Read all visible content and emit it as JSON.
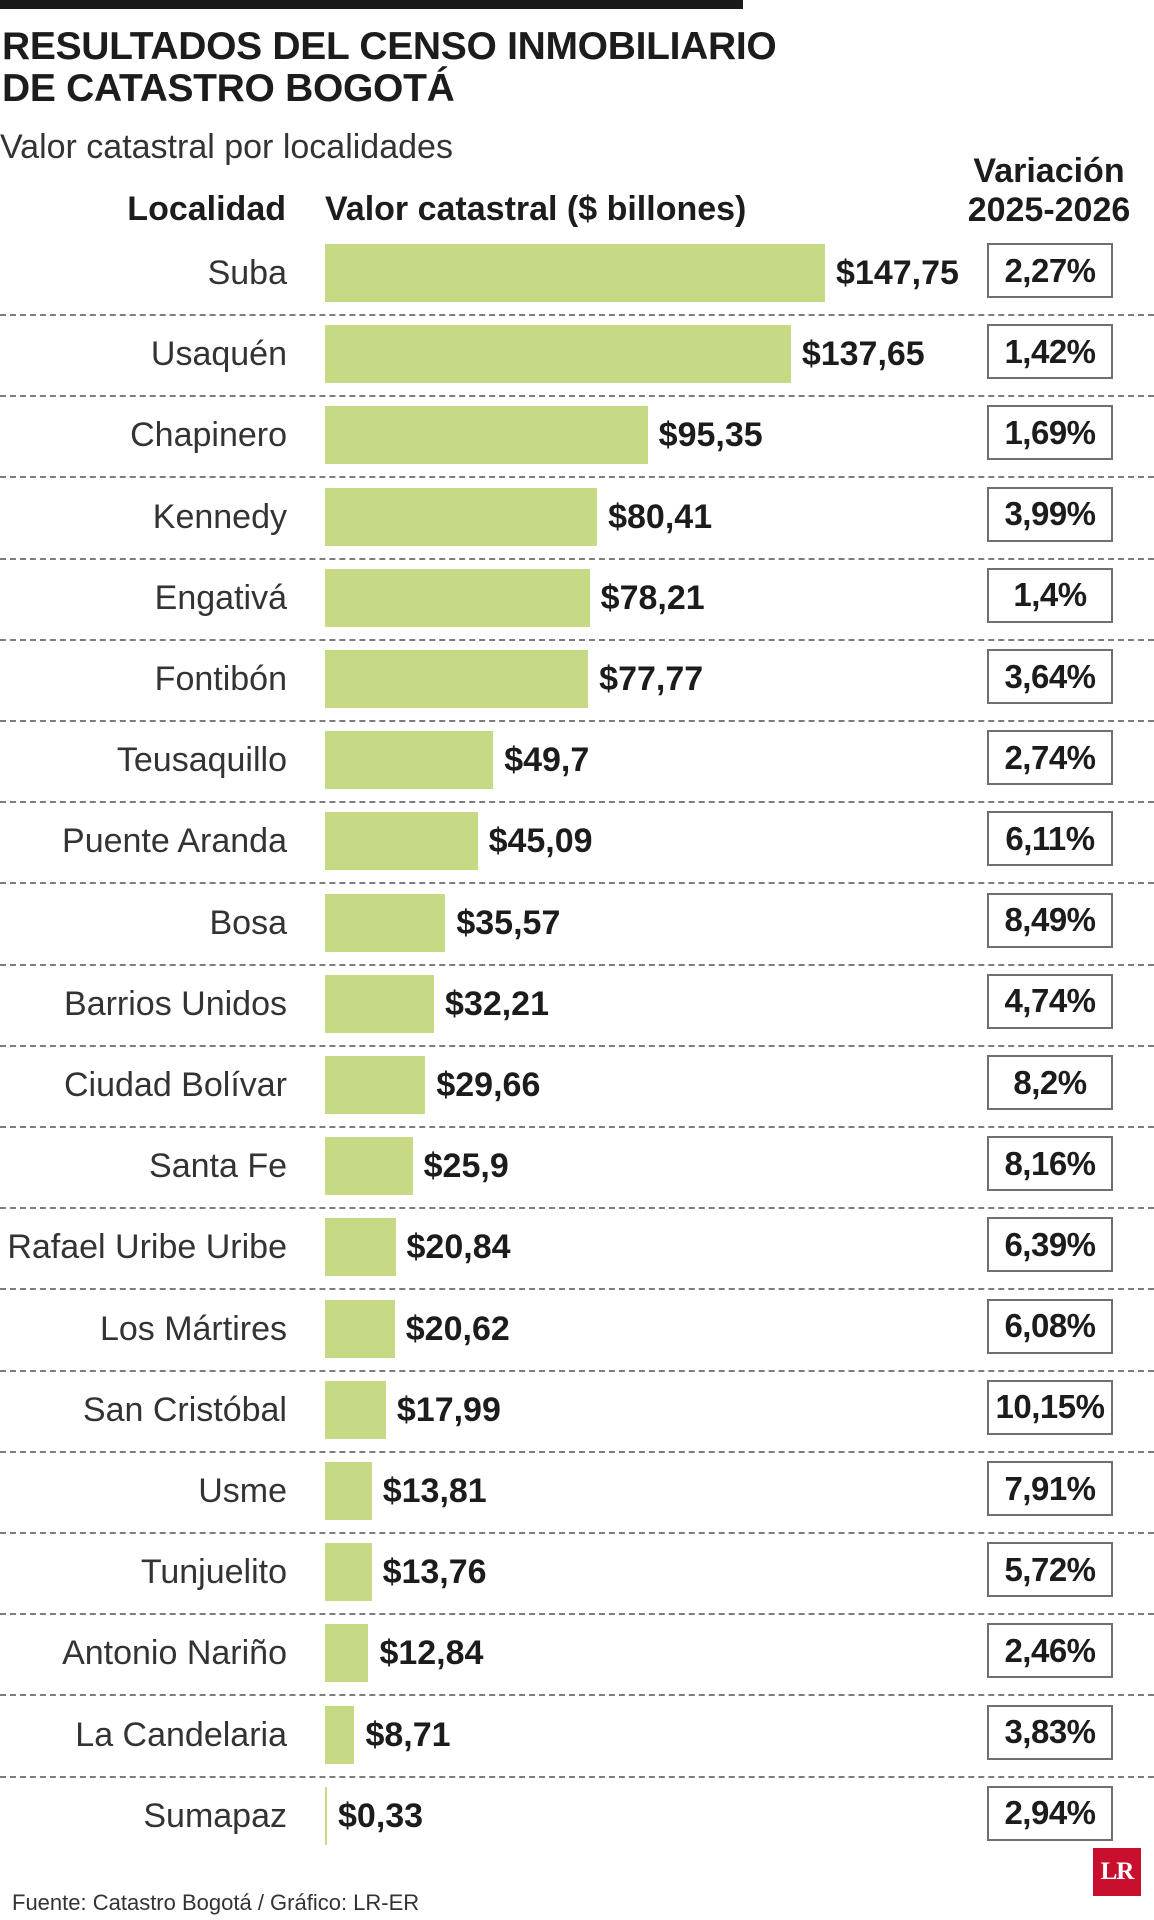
{
  "header": {
    "title_line1": "RESULTADOS DEL CENSO INMOBILIARIO",
    "title_line2": "DE CATASTRO BOGOTÁ",
    "subtitle": "Valor catastral por localidades"
  },
  "columns": {
    "locality": "Localidad",
    "value": "Valor catastral ($ billones)",
    "variation_line1": "Variación",
    "variation_line2": "2025-2026"
  },
  "chart_data": {
    "type": "bar",
    "orientation": "horizontal",
    "title": "Valor catastral por localidades",
    "xlabel": "Valor catastral ($ billones)",
    "ylabel": "Localidad",
    "xlim": [
      0,
      147.75
    ],
    "categories": [
      "Suba",
      "Usaquén",
      "Chapinero",
      "Kennedy",
      "Engativá",
      "Fontibón",
      "Teusaquillo",
      "Puente Aranda",
      "Bosa",
      "Barrios Unidos",
      "Ciudad Bolívar",
      "Santa Fe",
      "Rafael Uribe Uribe",
      "Los Mártires",
      "San Cristóbal",
      "Usme",
      "Tunjuelito",
      "Antonio Nariño",
      "La Candelaria",
      "Sumapaz"
    ],
    "values": [
      147.75,
      137.65,
      95.35,
      80.41,
      78.21,
      77.77,
      49.7,
      45.09,
      35.57,
      32.21,
      29.66,
      25.9,
      20.84,
      20.62,
      17.99,
      13.81,
      13.76,
      12.84,
      8.71,
      0.33
    ],
    "value_labels": [
      "$147,75",
      "$137,65",
      "$95,35",
      "$80,41",
      "$78,21",
      "$77,77",
      "$49,7",
      "$45,09",
      "$35,57",
      "$32,21",
      "$29,66",
      "$25,9",
      "$20,84",
      "$20,62",
      "$17,99",
      "$13,81",
      "$13,76",
      "$12,84",
      "$8,71",
      "$0,33"
    ],
    "variation_labels": [
      "2,27%",
      "1,42%",
      "1,69%",
      "3,99%",
      "1,4%",
      "3,64%",
      "2,74%",
      "6,11%",
      "8,49%",
      "4,74%",
      "8,2%",
      "8,16%",
      "6,39%",
      "6,08%",
      "10,15%",
      "7,91%",
      "5,72%",
      "2,46%",
      "3,83%",
      "2,94%"
    ],
    "bar_color": "#c6da86"
  },
  "footer": {
    "source": "Fuente: Catastro Bogotá / Gráfico: LR-ER",
    "logo": "LR"
  }
}
